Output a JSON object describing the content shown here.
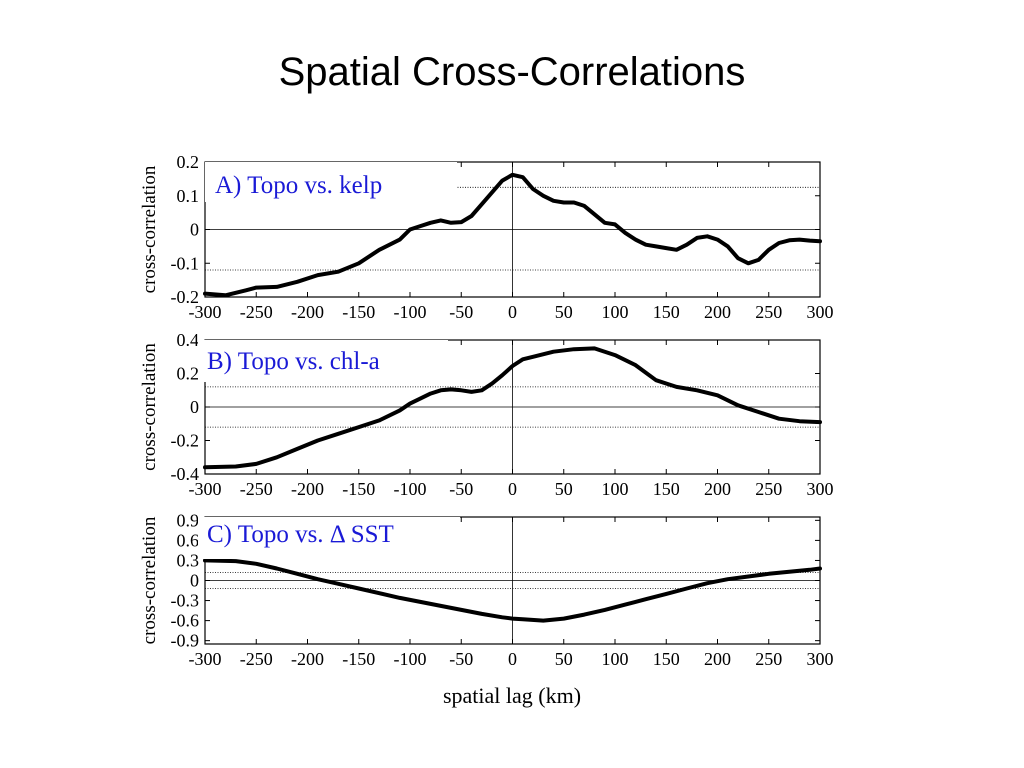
{
  "slide": {
    "title": "Spatial Cross-Correlations"
  },
  "chart_data": [
    {
      "type": "line",
      "title": "A) Topo vs. kelp",
      "ylabel": "cross-correlation",
      "xlabel": "",
      "xlim": [
        -300,
        300
      ],
      "ylim": [
        -0.2,
        0.2
      ],
      "xticks": [
        "-300",
        "-250",
        "-200",
        "-150",
        "-100",
        "-50",
        "0",
        "50",
        "100",
        "150",
        "200",
        "250",
        "300"
      ],
      "yticks": [
        {
          "v": 0.2,
          "label": "0.2"
        },
        {
          "v": 0.1,
          "label": "0.1"
        },
        {
          "v": 0,
          "label": "0"
        },
        {
          "v": -0.1,
          "label": "-0.1"
        },
        {
          "v": -0.2,
          "label": "-0.2"
        }
      ],
      "significance": [
        0.125,
        -0.12
      ],
      "grid": false,
      "series": [
        {
          "x": [
            -300,
            -280,
            -260,
            -250,
            -230,
            -210,
            -190,
            -170,
            -150,
            -130,
            -110,
            -100,
            -90,
            -80,
            -70,
            -60,
            -50,
            -40,
            -30,
            -20,
            -10,
            0,
            10,
            20,
            30,
            40,
            50,
            60,
            70,
            80,
            90,
            100,
            110,
            120,
            130,
            140,
            150,
            160,
            170,
            180,
            190,
            200,
            210,
            220,
            230,
            240,
            250,
            260,
            270,
            280,
            290,
            300
          ],
          "y": [
            -0.19,
            -0.195,
            -0.18,
            -0.172,
            -0.17,
            -0.155,
            -0.135,
            -0.125,
            -0.1,
            -0.06,
            -0.03,
            0,
            0.01,
            0.02,
            0.027,
            0.02,
            0.022,
            0.04,
            0.075,
            0.11,
            0.145,
            0.162,
            0.155,
            0.12,
            0.1,
            0.085,
            0.08,
            0.08,
            0.07,
            0.045,
            0.02,
            0.015,
            -0.01,
            -0.03,
            -0.045,
            -0.05,
            -0.055,
            -0.06,
            -0.045,
            -0.025,
            -0.02,
            -0.03,
            -0.05,
            -0.085,
            -0.1,
            -0.09,
            -0.06,
            -0.04,
            -0.032,
            -0.03,
            -0.033,
            -0.035
          ]
        }
      ]
    },
    {
      "type": "line",
      "title": "B) Topo vs. chl-a",
      "ylabel": "cross-correlation",
      "xlabel": "",
      "xlim": [
        -300,
        300
      ],
      "ylim": [
        -0.4,
        0.4
      ],
      "xticks": [
        "-300",
        "-250",
        "-200",
        "-150",
        "-100",
        "-50",
        "0",
        "50",
        "100",
        "150",
        "200",
        "250",
        "300"
      ],
      "yticks": [
        {
          "v": 0.4,
          "label": "0.4"
        },
        {
          "v": 0.2,
          "label": "0.2"
        },
        {
          "v": 0,
          "label": "0"
        },
        {
          "v": -0.2,
          "label": "-0.2"
        },
        {
          "v": -0.4,
          "label": "-0.4"
        }
      ],
      "significance": [
        0.12,
        -0.12
      ],
      "grid": false,
      "series": [
        {
          "x": [
            -300,
            -270,
            -250,
            -230,
            -210,
            -190,
            -170,
            -150,
            -130,
            -110,
            -100,
            -90,
            -80,
            -70,
            -60,
            -50,
            -40,
            -30,
            -20,
            -10,
            0,
            10,
            20,
            40,
            60,
            80,
            100,
            120,
            140,
            160,
            180,
            200,
            220,
            240,
            260,
            280,
            300
          ],
          "y": [
            -0.36,
            -0.355,
            -0.34,
            -0.3,
            -0.25,
            -0.2,
            -0.16,
            -0.12,
            -0.08,
            -0.02,
            0.02,
            0.05,
            0.08,
            0.1,
            0.105,
            0.1,
            0.09,
            0.1,
            0.14,
            0.19,
            0.245,
            0.285,
            0.3,
            0.33,
            0.345,
            0.35,
            0.31,
            0.25,
            0.16,
            0.12,
            0.1,
            0.07,
            0.01,
            -0.03,
            -0.07,
            -0.085,
            -0.09
          ]
        }
      ]
    },
    {
      "type": "line",
      "title": "C) Topo vs. Δ SST",
      "ylabel": "cross-correlation",
      "xlabel": "spatial lag (km)",
      "xlim": [
        -300,
        300
      ],
      "ylim": [
        -0.95,
        0.95
      ],
      "xticks": [
        "-300",
        "-250",
        "-200",
        "-150",
        "-100",
        "-50",
        "0",
        "50",
        "100",
        "150",
        "200",
        "250",
        "300"
      ],
      "yticks": [
        {
          "v": 0.9,
          "label": "0.9"
        },
        {
          "v": 0.6,
          "label": "0.6"
        },
        {
          "v": 0.3,
          "label": "0.3"
        },
        {
          "v": 0,
          "label": "0"
        },
        {
          "v": -0.3,
          "label": "-0.3"
        },
        {
          "v": -0.6,
          "label": "-0.6"
        },
        {
          "v": -0.9,
          "label": "-0.9"
        }
      ],
      "significance": [
        0.12,
        -0.12
      ],
      "grid": false,
      "series": [
        {
          "x": [
            -300,
            -270,
            -250,
            -230,
            -210,
            -190,
            -170,
            -150,
            -130,
            -110,
            -90,
            -70,
            -50,
            -30,
            -10,
            0,
            10,
            30,
            50,
            70,
            90,
            110,
            130,
            150,
            170,
            190,
            210,
            230,
            250,
            270,
            290,
            300
          ],
          "y": [
            0.3,
            0.29,
            0.25,
            0.18,
            0.1,
            0.02,
            -0.05,
            -0.12,
            -0.19,
            -0.26,
            -0.32,
            -0.38,
            -0.44,
            -0.5,
            -0.55,
            -0.57,
            -0.58,
            -0.6,
            -0.57,
            -0.51,
            -0.44,
            -0.36,
            -0.28,
            -0.2,
            -0.12,
            -0.04,
            0.02,
            0.06,
            0.1,
            0.13,
            0.16,
            0.18
          ]
        }
      ]
    }
  ]
}
